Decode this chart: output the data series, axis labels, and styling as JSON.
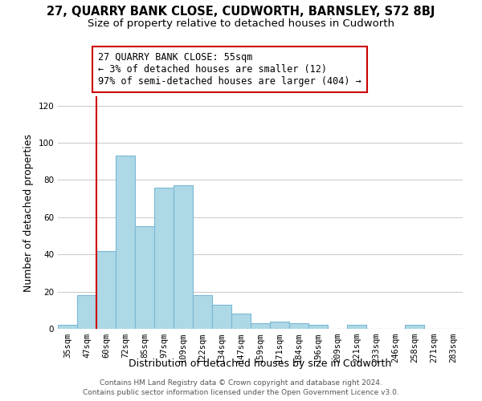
{
  "title": "27, QUARRY BANK CLOSE, CUDWORTH, BARNSLEY, S72 8BJ",
  "subtitle": "Size of property relative to detached houses in Cudworth",
  "xlabel": "Distribution of detached houses by size in Cudworth",
  "ylabel": "Number of detached properties",
  "bar_labels": [
    "35sqm",
    "47sqm",
    "60sqm",
    "72sqm",
    "85sqm",
    "97sqm",
    "109sqm",
    "122sqm",
    "134sqm",
    "147sqm",
    "159sqm",
    "171sqm",
    "184sqm",
    "196sqm",
    "209sqm",
    "221sqm",
    "233sqm",
    "246sqm",
    "258sqm",
    "271sqm",
    "283sqm"
  ],
  "bar_values": [
    2,
    18,
    42,
    93,
    55,
    76,
    77,
    18,
    13,
    8,
    3,
    4,
    3,
    2,
    0,
    2,
    0,
    0,
    2,
    0,
    0
  ],
  "bar_color": "#add8e6",
  "bar_edge_color": "#7ab8d4",
  "vline_color": "#cc0000",
  "annotation_text": "27 QUARRY BANK CLOSE: 55sqm\n← 3% of detached houses are smaller (12)\n97% of semi-detached houses are larger (404) →",
  "annotation_box_color": "#ffffff",
  "annotation_box_edge": "#cc0000",
  "ylim": [
    0,
    125
  ],
  "yticks": [
    0,
    20,
    40,
    60,
    80,
    100,
    120
  ],
  "footer_line1": "Contains HM Land Registry data © Crown copyright and database right 2024.",
  "footer_line2": "Contains public sector information licensed under the Open Government Licence v3.0.",
  "background_color": "#ffffff",
  "grid_color": "#cccccc",
  "title_fontsize": 10.5,
  "subtitle_fontsize": 9.5,
  "axis_label_fontsize": 9,
  "tick_fontsize": 7.5,
  "annotation_fontsize": 8.5,
  "footer_fontsize": 6.5
}
